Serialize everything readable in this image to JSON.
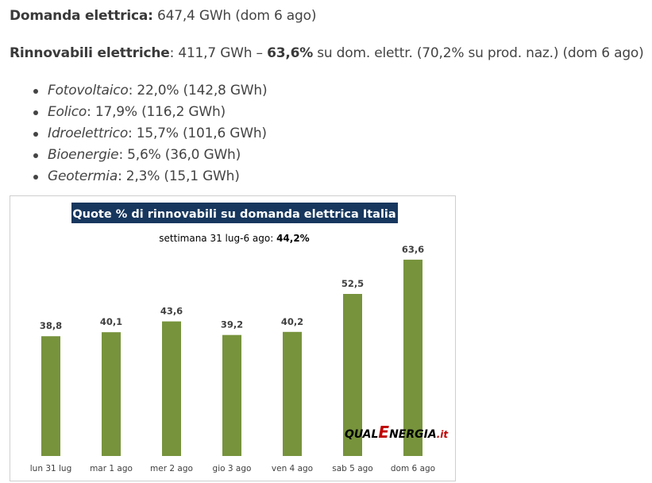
{
  "article": {
    "demand": {
      "label": "Domanda elettrica:",
      "value": "647,4 GWh (dom 6 ago)"
    },
    "renewables": {
      "label": "Rinnovabili elettriche",
      "value_a": ": 411,7 GWh – ",
      "percent": "63,6%",
      "value_b": " su dom. elettr. (70,2% su prod. naz.) (dom 6 ago)"
    },
    "sources": [
      {
        "name": "Fotovoltaico",
        "value": ": 22,0% (142,8 GWh)"
      },
      {
        "name": "Eolico",
        "value": ": 17,9% (116,2 GWh)"
      },
      {
        "name": "Idroelettrico",
        "value": ": 15,7% (101,6 GWh)"
      },
      {
        "name": "Bioenergie",
        "value": ": 5,6% (36,0 GWh)"
      },
      {
        "name": "Geotermia",
        "value": ": 2,3% (15,1 GWh)"
      }
    ]
  },
  "chart_data": {
    "type": "bar",
    "title": "Quote % di rinnovabili su domanda elettrica Italia",
    "subtitle": "settimana 31 lug-6 ago: ",
    "subtitle_value": "44,2%",
    "categories": [
      "lun 31 lug",
      "mar 1 ago",
      "mer 2 ago",
      "gio 3 ago",
      "ven 4 ago",
      "sab 5 ago",
      "dom 6 ago"
    ],
    "values": [
      38.8,
      40.1,
      43.6,
      39.2,
      40.2,
      52.5,
      63.6
    ],
    "data_labels": [
      "38,8",
      "40,1",
      "43,6",
      "39,2",
      "40,2",
      "52,5",
      "63,6"
    ],
    "ylim": [
      0,
      70
    ],
    "grid": false,
    "bar_color": "#77933c",
    "title_bg": "#17375e",
    "watermark": {
      "part1": "QUAL",
      "part2": "E",
      "part3": "NERGIA",
      "part4": ".it"
    }
  }
}
